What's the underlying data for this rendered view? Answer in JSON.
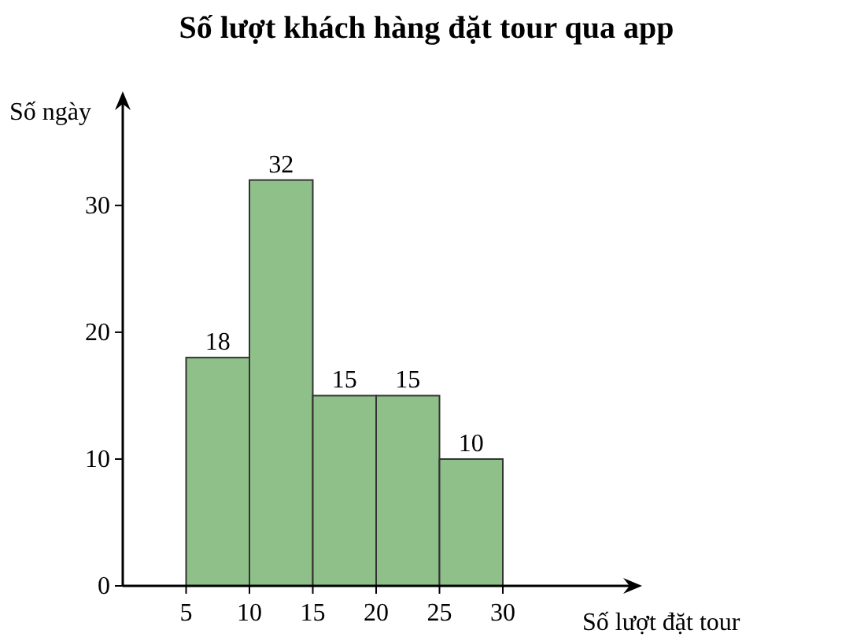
{
  "chart_data": {
    "type": "histogram",
    "title": "Số lượt khách hàng đặt tour qua app",
    "xlabel": "Số lượt đặt tour",
    "ylabel": "Số ngày",
    "bins": [
      5,
      10,
      15,
      20,
      25,
      30
    ],
    "values": [
      18,
      32,
      15,
      15,
      10
    ],
    "color": "#8fc08a",
    "xlim": [
      0,
      40
    ],
    "ylim": [
      0,
      38
    ],
    "xticks": [
      5,
      10,
      15,
      20,
      25,
      30
    ],
    "yticks": [
      0,
      10,
      20,
      30
    ],
    "data_labels": true,
    "grid": false
  }
}
